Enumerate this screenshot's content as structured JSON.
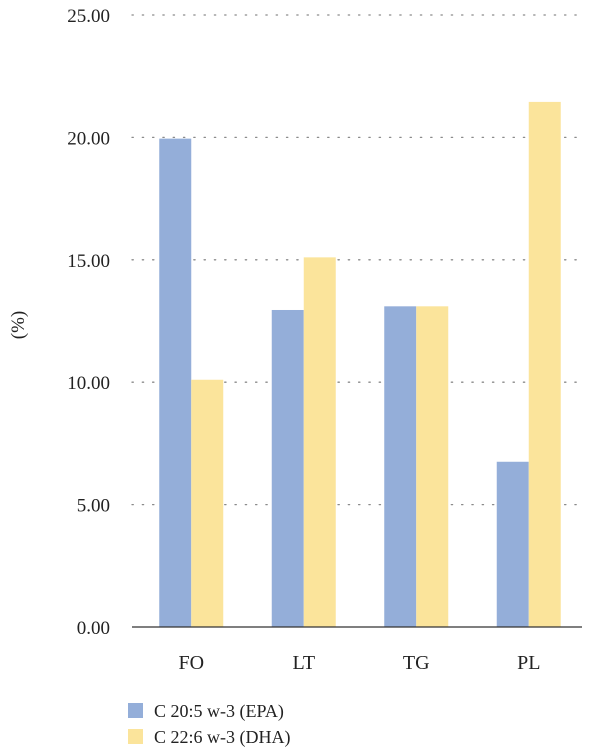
{
  "chart_data": {
    "type": "bar",
    "categories": [
      "FO",
      "LT",
      "TG",
      "PL"
    ],
    "series": [
      {
        "name": "C 20:5 w-3 (EPA)",
        "values": [
          19.95,
          12.95,
          13.1,
          6.75
        ],
        "color": "#94aed9"
      },
      {
        "name": "C 22:6 w-3 (DHA)",
        "values": [
          10.1,
          15.1,
          13.1,
          21.45
        ],
        "color": "#fbe49b"
      }
    ],
    "ylabel": "(%)",
    "ylim": [
      0,
      25
    ],
    "yticks": [
      "0.00",
      "5.00",
      "10.00",
      "15.00",
      "20.00",
      "25.00"
    ],
    "grid": true,
    "legend_position": "bottom-left"
  }
}
